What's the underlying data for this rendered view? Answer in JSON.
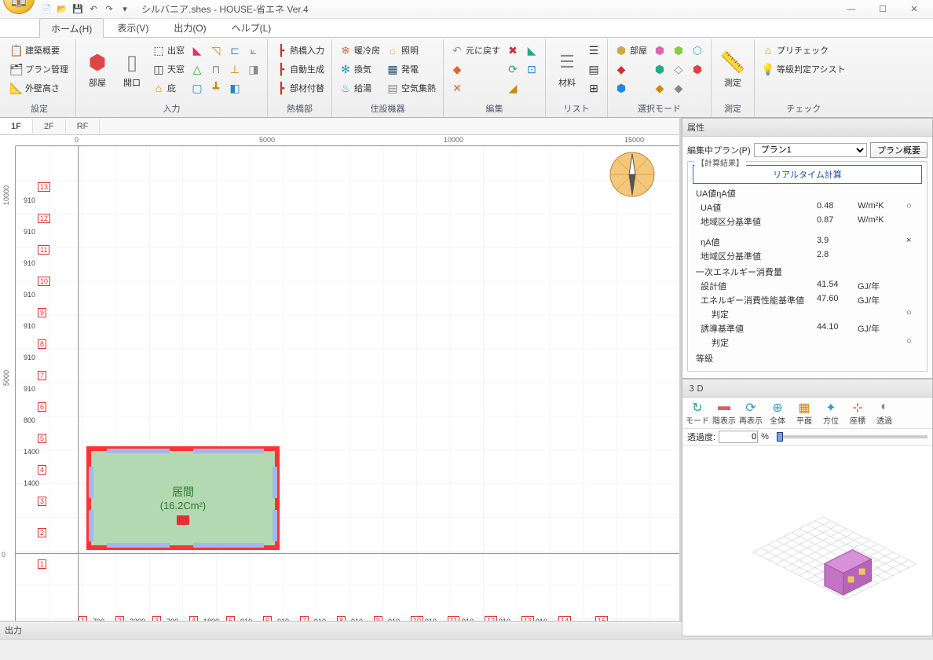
{
  "app": {
    "title_file": "シルバニア.shes",
    "title_app": "HOUSE-省エネ Ver.4"
  },
  "tabs": {
    "home": "ホーム(H)",
    "view": "表示(V)",
    "output": "出力(O)",
    "help": "ヘルプ(L)"
  },
  "ribbon": {
    "settings": {
      "label": "設定",
      "btn1": "建築概要",
      "btn2": "プラン管理",
      "btn3": "外壁高さ"
    },
    "input": {
      "label": "入力",
      "room": "部屋",
      "opening": "開口",
      "dewin": "出窓",
      "skylight": "天窓",
      "eave": "庇"
    },
    "bridge": {
      "label": "熱橋部",
      "b1": "熱橋入力",
      "b2": "自動生成",
      "b3": "部材付替"
    },
    "equip": {
      "label": "住設機器",
      "e1": "暖冷房",
      "e2": "換気",
      "e3": "給湯",
      "e4": "照明",
      "e5": "発電",
      "e6": "空気集熱"
    },
    "edit": {
      "label": "編集",
      "undo": "元に戻す"
    },
    "list": {
      "label": "リスト",
      "mat": "材料"
    },
    "selmode": {
      "label": "選択モード",
      "room": "部屋"
    },
    "measure": {
      "label": "測定",
      "btn": "測定"
    },
    "check": {
      "label": "チェック",
      "c1": "プリチェック",
      "c2": "等級判定アシスト"
    }
  },
  "floors": {
    "f1": "1F",
    "f2": "2F",
    "rf": "RF"
  },
  "ruler": {
    "t0": "0",
    "t5000": "5000",
    "t10000": "10000",
    "t15000": "15000",
    "v0": "0",
    "v5000": "5000",
    "v10000": "10000"
  },
  "room": {
    "name": "居間",
    "area": "(16.2Cm²)"
  },
  "dims": {
    "left_seq": [
      "13",
      "12",
      "11",
      "10",
      "9",
      "8",
      "7",
      "6",
      "5",
      "4",
      "3",
      "2",
      "1"
    ],
    "left_vals": [
      "910",
      "910",
      "910",
      "910",
      "910",
      "910",
      "910",
      "800",
      "1400",
      "1400"
    ],
    "bot_seq": [
      "1",
      "2",
      "3",
      "4",
      "5",
      "6",
      "7",
      "8",
      "9",
      "10",
      "11",
      "12",
      "13",
      "14",
      "15"
    ],
    "bot_vals": [
      "700",
      "2200",
      "700",
      "1800",
      "910",
      "910",
      "910",
      "910",
      "910",
      "910",
      "910",
      "910",
      "910"
    ]
  },
  "props": {
    "panel_title": "属性",
    "plan_label": "編集中プラン(P)",
    "plan_value": "プラン1",
    "plan_btn": "プラン概要",
    "group_calc": "【計算結果】",
    "realtime": "リアルタイム計算",
    "ua_section": "UA値ηA値",
    "ua_label": "UA値",
    "ua_val": "0.48",
    "ua_unit": "W/m²K",
    "ua_mark": "○",
    "ua_std_label": "地域区分基準値",
    "ua_std_val": "0.87",
    "ua_std_unit": "W/m²K",
    "na_label": "ηA値",
    "na_val": "3.9",
    "na_mark": "×",
    "na_std_label": "地域区分基準値",
    "na_std_val": "2.8",
    "energy_section": "一次エネルギー消費量",
    "design_label": "設計値",
    "design_val": "41.54",
    "design_unit": "GJ/年",
    "perf_label": "エネルギー消費性能基準値",
    "perf_val": "47.60",
    "perf_unit": "GJ/年",
    "judge_label": "判定",
    "judge_mark": "○",
    "guide_label": "誘導基準値",
    "guide_val": "44.10",
    "guide_unit": "GJ/年",
    "judge2_label": "判定",
    "judge2_mark": "○",
    "grade_label": "等級"
  },
  "panel3d": {
    "title": "３Ｄ",
    "mode": "モード",
    "floor": "階表示",
    "redraw": "再表示",
    "all": "全体",
    "plan": "平面",
    "dir": "方位",
    "coord": "座標",
    "trans": "透過",
    "opacity_label": "透過度:",
    "opacity_val": "0",
    "opacity_pct": "%"
  },
  "output": {
    "title": "出力"
  },
  "colors": {
    "room_fill": "#b2d9b2",
    "room_border": "#ff3333",
    "wall_seg": "#a2b8e8",
    "grid": "#d8d8d8",
    "grid_major": "#bcbcbc",
    "dim_red": "#dd3333"
  }
}
